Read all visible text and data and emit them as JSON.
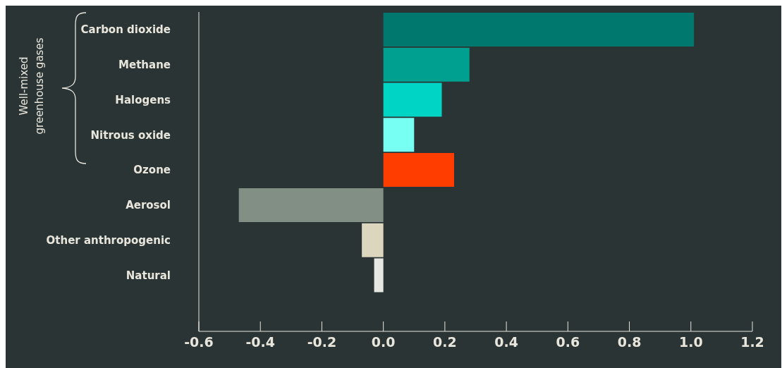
{
  "chart_data": {
    "type": "bar",
    "orientation": "horizontal",
    "categories": [
      "Carbon dioxide",
      "Methane",
      "Halogens",
      "Nitrous oxide",
      "Ozone",
      "Aerosol",
      "Other anthropogenic",
      "Natural"
    ],
    "values": [
      1.01,
      0.28,
      0.19,
      0.1,
      0.23,
      -0.47,
      -0.07,
      -0.03
    ],
    "colors": [
      "#00786d",
      "#00a091",
      "#00d4c4",
      "#77fff3",
      "#ff3d00",
      "#828f85",
      "#ddd6bf",
      "#e6e6e3"
    ],
    "xlim": [
      -0.6,
      1.2
    ],
    "xticks": [
      -0.6,
      -0.4,
      -0.2,
      {
        "value": 0,
        "label": "0.0"
      },
      0.2,
      0.4,
      0.6,
      0.8,
      {
        "value": 1,
        "label": "1.0"
      },
      1.2
    ],
    "annotations": [
      "Well-mixed greenhouse gases"
    ],
    "grid": false,
    "legend": false
  }
}
